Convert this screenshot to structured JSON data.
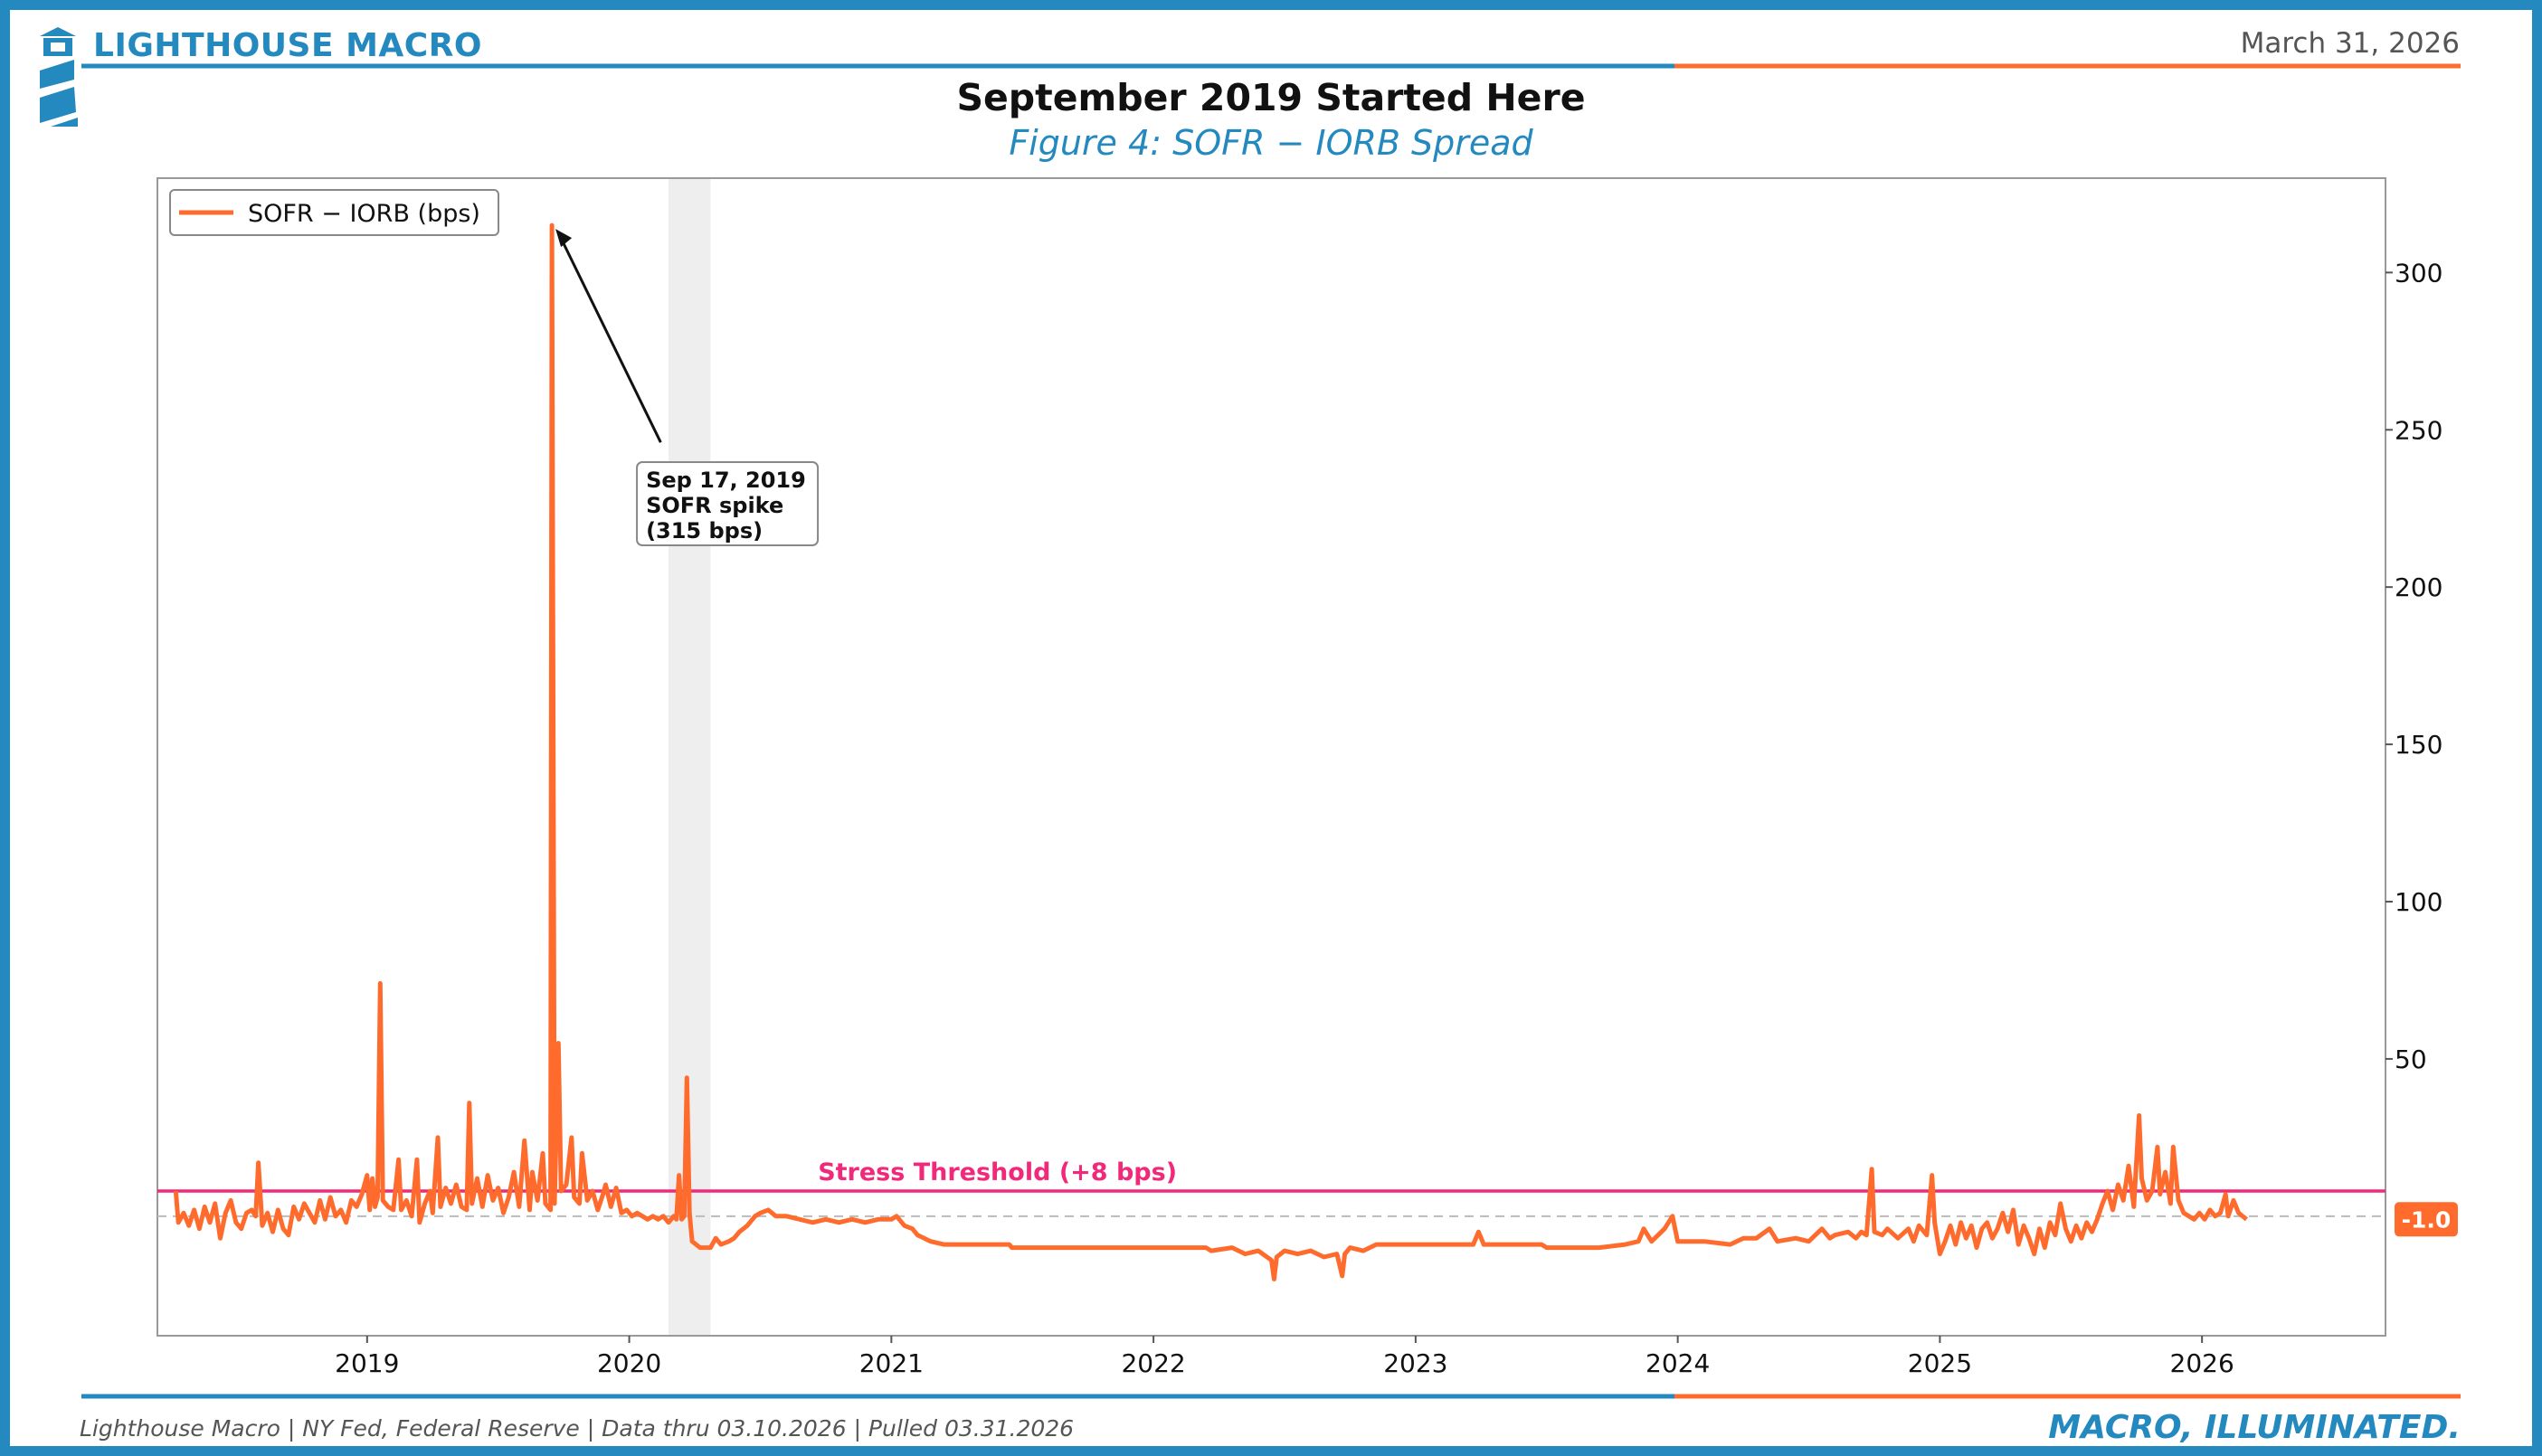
{
  "header": {
    "brand": "LIGHTHOUSE MACRO",
    "date": "March 31, 2026",
    "title": "September 2019 Started Here",
    "subtitle": "Figure 4: SOFR − IORB Spread"
  },
  "footer": {
    "source": "Lighthouse Macro | NY Fed, Federal Reserve | Data thru 03.10.2026 | Pulled 03.31.2026",
    "tagline": "MACRO, ILLUMINATED."
  },
  "colors": {
    "brand_blue": "#2389BE",
    "accent_orange": "#FF6B2C",
    "threshold_pink": "#F0297A",
    "shade_gray": "#EEEEEE"
  },
  "icons": {
    "logo": "lighthouse-icon"
  },
  "chart_data": {
    "type": "line",
    "title": "September 2019 Started Here",
    "subtitle": "Figure 4: SOFR − IORB Spread",
    "xlabel": "",
    "ylabel": "",
    "x_ticks": [
      "2019",
      "2020",
      "2021",
      "2022",
      "2023",
      "2024",
      "2025",
      "2026"
    ],
    "y_ticks": [
      50,
      100,
      150,
      200,
      250,
      300
    ],
    "xlim": [
      2018.2,
      2026.7
    ],
    "ylim": [
      -38,
      330
    ],
    "y_axis_side": "right",
    "grid": false,
    "legend": {
      "placement": "top-left",
      "entries": [
        "SOFR − IORB (bps)"
      ]
    },
    "shaded_region": [
      2020.15,
      2020.31
    ],
    "series": [
      {
        "name": "SOFR − IORB (bps)",
        "color": "#FF6B2C",
        "points": [
          [
            2018.27,
            8
          ],
          [
            2018.28,
            -2
          ],
          [
            2018.3,
            1
          ],
          [
            2018.32,
            -3
          ],
          [
            2018.34,
            2
          ],
          [
            2018.36,
            -4
          ],
          [
            2018.38,
            3
          ],
          [
            2018.4,
            -2
          ],
          [
            2018.42,
            4
          ],
          [
            2018.44,
            -7
          ],
          [
            2018.46,
            1
          ],
          [
            2018.48,
            5
          ],
          [
            2018.5,
            -2
          ],
          [
            2018.52,
            -4
          ],
          [
            2018.54,
            1
          ],
          [
            2018.56,
            2
          ],
          [
            2018.575,
            0
          ],
          [
            2018.585,
            17
          ],
          [
            2018.6,
            -3
          ],
          [
            2018.62,
            1
          ],
          [
            2018.64,
            -5
          ],
          [
            2018.66,
            2
          ],
          [
            2018.68,
            -4
          ],
          [
            2018.7,
            -6
          ],
          [
            2018.72,
            3
          ],
          [
            2018.74,
            -1
          ],
          [
            2018.76,
            4
          ],
          [
            2018.78,
            1
          ],
          [
            2018.8,
            -2
          ],
          [
            2018.82,
            5
          ],
          [
            2018.84,
            -1
          ],
          [
            2018.86,
            6
          ],
          [
            2018.88,
            0
          ],
          [
            2018.9,
            2
          ],
          [
            2018.92,
            -2
          ],
          [
            2018.94,
            5
          ],
          [
            2018.96,
            3
          ],
          [
            2018.98,
            7
          ],
          [
            2019.0,
            13
          ],
          [
            2019.01,
            2
          ],
          [
            2019.02,
            12
          ],
          [
            2019.03,
            3
          ],
          [
            2019.04,
            6
          ],
          [
            2019.05,
            74
          ],
          [
            2019.06,
            5
          ],
          [
            2019.08,
            3
          ],
          [
            2019.1,
            2
          ],
          [
            2019.12,
            18
          ],
          [
            2019.13,
            2
          ],
          [
            2019.15,
            5
          ],
          [
            2019.17,
            0
          ],
          [
            2019.19,
            18
          ],
          [
            2019.2,
            -2
          ],
          [
            2019.22,
            4
          ],
          [
            2019.24,
            8
          ],
          [
            2019.25,
            1
          ],
          [
            2019.27,
            25
          ],
          [
            2019.28,
            3
          ],
          [
            2019.3,
            9
          ],
          [
            2019.32,
            4
          ],
          [
            2019.34,
            10
          ],
          [
            2019.36,
            3
          ],
          [
            2019.38,
            2
          ],
          [
            2019.39,
            36
          ],
          [
            2019.4,
            4
          ],
          [
            2019.42,
            12
          ],
          [
            2019.44,
            3
          ],
          [
            2019.46,
            13
          ],
          [
            2019.48,
            5
          ],
          [
            2019.5,
            9
          ],
          [
            2019.52,
            1
          ],
          [
            2019.54,
            6
          ],
          [
            2019.56,
            14
          ],
          [
            2019.58,
            3
          ],
          [
            2019.6,
            24
          ],
          [
            2019.62,
            2
          ],
          [
            2019.63,
            14
          ],
          [
            2019.65,
            5
          ],
          [
            2019.67,
            20
          ],
          [
            2019.68,
            4
          ],
          [
            2019.7,
            2
          ],
          [
            2019.705,
            315
          ],
          [
            2019.715,
            4
          ],
          [
            2019.73,
            55
          ],
          [
            2019.74,
            8
          ],
          [
            2019.76,
            10
          ],
          [
            2019.78,
            25
          ],
          [
            2019.79,
            6
          ],
          [
            2019.81,
            4
          ],
          [
            2019.82,
            20
          ],
          [
            2019.84,
            5
          ],
          [
            2019.86,
            8
          ],
          [
            2019.88,
            2
          ],
          [
            2019.9,
            7
          ],
          [
            2019.91,
            10
          ],
          [
            2019.93,
            3
          ],
          [
            2019.95,
            9
          ],
          [
            2019.97,
            1
          ],
          [
            2019.99,
            2
          ],
          [
            2020.01,
            0
          ],
          [
            2020.03,
            1
          ],
          [
            2020.05,
            0
          ],
          [
            2020.07,
            -1
          ],
          [
            2020.09,
            0
          ],
          [
            2020.11,
            -1
          ],
          [
            2020.13,
            0
          ],
          [
            2020.15,
            -2
          ],
          [
            2020.17,
            0
          ],
          [
            2020.18,
            -1
          ],
          [
            2020.19,
            13
          ],
          [
            2020.2,
            -1
          ],
          [
            2020.21,
            0
          ],
          [
            2020.22,
            44
          ],
          [
            2020.23,
            1
          ],
          [
            2020.24,
            -8
          ],
          [
            2020.27,
            -10
          ],
          [
            2020.31,
            -10
          ],
          [
            2020.33,
            -7
          ],
          [
            2020.35,
            -9
          ],
          [
            2020.38,
            -8
          ],
          [
            2020.4,
            -7
          ],
          [
            2020.42,
            -5
          ],
          [
            2020.45,
            -3
          ],
          [
            2020.48,
            0
          ],
          [
            2020.5,
            1
          ],
          [
            2020.53,
            2
          ],
          [
            2020.56,
            0
          ],
          [
            2020.6,
            0
          ],
          [
            2020.65,
            -1
          ],
          [
            2020.7,
            -2
          ],
          [
            2020.75,
            -1
          ],
          [
            2020.8,
            -2
          ],
          [
            2020.85,
            -1
          ],
          [
            2020.9,
            -2
          ],
          [
            2020.95,
            -1
          ],
          [
            2021.0,
            -1
          ],
          [
            2021.02,
            0
          ],
          [
            2021.05,
            -3
          ],
          [
            2021.08,
            -4
          ],
          [
            2021.1,
            -6
          ],
          [
            2021.15,
            -8
          ],
          [
            2021.2,
            -9
          ],
          [
            2021.3,
            -9
          ],
          [
            2021.45,
            -9
          ],
          [
            2021.46,
            -10
          ],
          [
            2021.6,
            -10
          ],
          [
            2021.8,
            -10
          ],
          [
            2022.0,
            -10
          ],
          [
            2022.2,
            -10
          ],
          [
            2022.22,
            -11
          ],
          [
            2022.3,
            -10
          ],
          [
            2022.35,
            -12
          ],
          [
            2022.4,
            -11
          ],
          [
            2022.45,
            -14
          ],
          [
            2022.46,
            -20
          ],
          [
            2022.47,
            -13
          ],
          [
            2022.5,
            -11
          ],
          [
            2022.55,
            -12
          ],
          [
            2022.6,
            -11
          ],
          [
            2022.65,
            -13
          ],
          [
            2022.7,
            -12
          ],
          [
            2022.72,
            -19
          ],
          [
            2022.73,
            -12
          ],
          [
            2022.75,
            -10
          ],
          [
            2022.8,
            -11
          ],
          [
            2022.85,
            -9
          ],
          [
            2022.9,
            -9
          ],
          [
            2023.0,
            -9
          ],
          [
            2023.1,
            -9
          ],
          [
            2023.22,
            -9
          ],
          [
            2023.24,
            -5
          ],
          [
            2023.26,
            -9
          ],
          [
            2023.4,
            -9
          ],
          [
            2023.48,
            -9
          ],
          [
            2023.5,
            -10
          ],
          [
            2023.7,
            -10
          ],
          [
            2023.8,
            -9
          ],
          [
            2023.85,
            -8
          ],
          [
            2023.87,
            -4
          ],
          [
            2023.9,
            -8
          ],
          [
            2023.95,
            -4
          ],
          [
            2023.98,
            0
          ],
          [
            2024.0,
            -8
          ],
          [
            2024.1,
            -8
          ],
          [
            2024.2,
            -9
          ],
          [
            2024.25,
            -7
          ],
          [
            2024.3,
            -7
          ],
          [
            2024.35,
            -4
          ],
          [
            2024.38,
            -8
          ],
          [
            2024.45,
            -7
          ],
          [
            2024.5,
            -8
          ],
          [
            2024.55,
            -4
          ],
          [
            2024.58,
            -7
          ],
          [
            2024.6,
            -6
          ],
          [
            2024.65,
            -5
          ],
          [
            2024.68,
            -7
          ],
          [
            2024.7,
            -5
          ],
          [
            2024.72,
            -6
          ],
          [
            2024.74,
            15
          ],
          [
            2024.75,
            -5
          ],
          [
            2024.78,
            -6
          ],
          [
            2024.8,
            -4
          ],
          [
            2024.84,
            -7
          ],
          [
            2024.88,
            -4
          ],
          [
            2024.9,
            -8
          ],
          [
            2024.92,
            -3
          ],
          [
            2024.95,
            -6
          ],
          [
            2024.97,
            13
          ],
          [
            2024.98,
            -2
          ],
          [
            2025.0,
            -12
          ],
          [
            2025.02,
            -8
          ],
          [
            2025.04,
            -3
          ],
          [
            2025.06,
            -9
          ],
          [
            2025.08,
            -2
          ],
          [
            2025.1,
            -7
          ],
          [
            2025.12,
            -3
          ],
          [
            2025.14,
            -10
          ],
          [
            2025.16,
            -4
          ],
          [
            2025.18,
            -2
          ],
          [
            2025.2,
            -7
          ],
          [
            2025.22,
            -4
          ],
          [
            2025.24,
            1
          ],
          [
            2025.26,
            -5
          ],
          [
            2025.28,
            2
          ],
          [
            2025.3,
            -9
          ],
          [
            2025.32,
            -3
          ],
          [
            2025.34,
            -7
          ],
          [
            2025.36,
            -12
          ],
          [
            2025.38,
            -4
          ],
          [
            2025.4,
            -10
          ],
          [
            2025.42,
            -2
          ],
          [
            2025.44,
            -6
          ],
          [
            2025.46,
            4
          ],
          [
            2025.48,
            -4
          ],
          [
            2025.5,
            -8
          ],
          [
            2025.52,
            -3
          ],
          [
            2025.54,
            -7
          ],
          [
            2025.56,
            -2
          ],
          [
            2025.58,
            -5
          ],
          [
            2025.6,
            -1
          ],
          [
            2025.62,
            4
          ],
          [
            2025.64,
            8
          ],
          [
            2025.66,
            2
          ],
          [
            2025.68,
            10
          ],
          [
            2025.7,
            5
          ],
          [
            2025.72,
            16
          ],
          [
            2025.74,
            3
          ],
          [
            2025.76,
            32
          ],
          [
            2025.77,
            12
          ],
          [
            2025.79,
            5
          ],
          [
            2025.81,
            8
          ],
          [
            2025.83,
            22
          ],
          [
            2025.84,
            7
          ],
          [
            2025.86,
            14
          ],
          [
            2025.88,
            4
          ],
          [
            2025.89,
            22
          ],
          [
            2025.91,
            5
          ],
          [
            2025.93,
            1
          ],
          [
            2025.95,
            0
          ],
          [
            2025.97,
            -1
          ],
          [
            2025.99,
            1
          ],
          [
            2026.01,
            -1
          ],
          [
            2026.03,
            2
          ],
          [
            2026.05,
            0
          ],
          [
            2026.07,
            1
          ],
          [
            2026.09,
            7
          ],
          [
            2026.1,
            0
          ],
          [
            2026.12,
            5
          ],
          [
            2026.14,
            1
          ],
          [
            2026.17,
            -1
          ]
        ]
      }
    ],
    "reference_lines": [
      {
        "type": "horizontal",
        "y": 8,
        "label": "Stress Threshold (+8 bps)",
        "color": "#F0297A",
        "style": "solid"
      },
      {
        "type": "horizontal",
        "y": 0,
        "label": "",
        "color": "#BBBBBB",
        "style": "dashed"
      }
    ],
    "annotation": {
      "lines": [
        "Sep 17, 2019",
        "SOFR spike",
        "(315 bps)"
      ],
      "point": [
        2019.705,
        315
      ],
      "text_anchor": [
        2020.05,
        238
      ]
    },
    "last_value_label": {
      "text": "-1.0",
      "y": -1,
      "color": "#FF6B2C"
    }
  }
}
